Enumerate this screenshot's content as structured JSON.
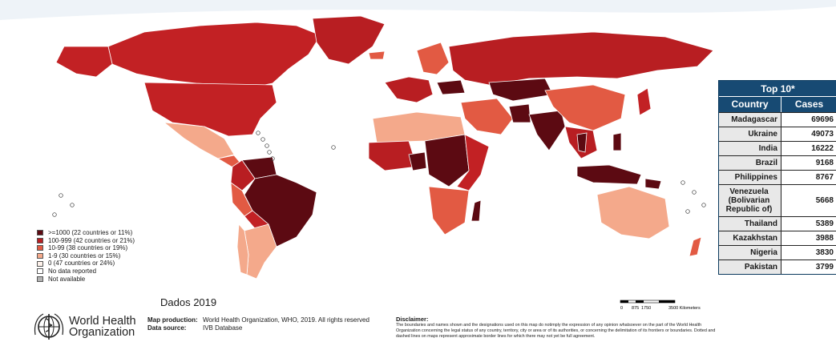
{
  "legend": [
    {
      "label": ">=1000 (22 countries or 11%)",
      "color": "#5c0a12"
    },
    {
      "label": "100-999 (42 countries or 21%)",
      "color": "#b81e22"
    },
    {
      "label": "10-99 (38 countries or 19%)",
      "color": "#e25a43"
    },
    {
      "label": "1-9 (30 countries or 15%)",
      "color": "#f4a98b"
    },
    {
      "label": "0 (47 countries or 24%)",
      "color": "#fdf1ea"
    },
    {
      "label": "No data reported",
      "color": "#ffffff"
    },
    {
      "label": "Not available",
      "color": "#b3b3b3"
    }
  ],
  "top10": {
    "title": "Top 10*",
    "col_country": "Country",
    "col_cases": "Cases",
    "rows": [
      {
        "country": "Madagascar",
        "cases": "69696"
      },
      {
        "country": "Ukraine",
        "cases": "49073"
      },
      {
        "country": "India",
        "cases": "16222"
      },
      {
        "country": "Brazil",
        "cases": "9168"
      },
      {
        "country": "Philippines",
        "cases": "8767"
      },
      {
        "country": "Venezuela (Bolivarian Republic of)",
        "cases": "5668"
      },
      {
        "country": "Thailand",
        "cases": "5389"
      },
      {
        "country": "Kazakhstan",
        "cases": "3988"
      },
      {
        "country": "Nigeria",
        "cases": "3830"
      },
      {
        "country": "Pakistan",
        "cases": "3799"
      }
    ]
  },
  "year_label": "Dados 2019",
  "who": {
    "line1": "World Health",
    "line2": "Organization"
  },
  "credits": {
    "map_production_key": "Map production:",
    "map_production_val": "World Health Organization, WHO, 2019. All rights reserved",
    "data_source_key": "Data source:",
    "data_source_val": "IVB Database"
  },
  "disclaimer": {
    "title": "Disclaimer:",
    "text": "The boundaries and names shown and the designations used on this map do notimply the expression of any opinion whatsoever on the part of the World Health Organization concerning the legal status of any country, territory, city or area or of its authorities, or concerning the delimitation of its frontiers or boundaries. Dotted and dashed lines on maps represent approximate border lines for which there may not yet be full agreement."
  },
  "scale": {
    "ticks": [
      "0",
      "875",
      "1750",
      "3500 Kilometers"
    ]
  }
}
